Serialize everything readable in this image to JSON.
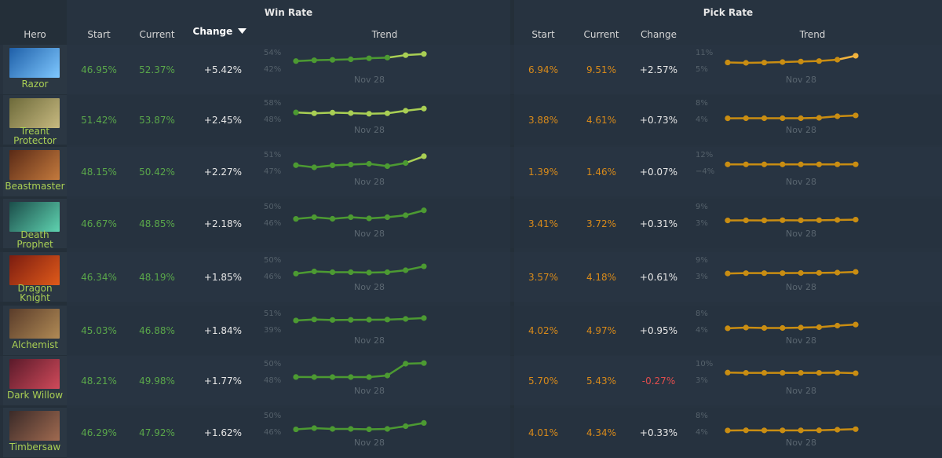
{
  "header": {
    "win_rate_group": "Win Rate",
    "pick_rate_group": "Pick Rate",
    "hero": "Hero",
    "start": "Start",
    "current": "Current",
    "change": "Change",
    "trend": "Trend",
    "sort_indicator": "triangle-down-icon"
  },
  "colors": {
    "win_line": "#4c9a32",
    "win_highlight": "#a9cf54",
    "pick_line": "#c98d12",
    "pick_highlight": "#f2b33d",
    "negative": "#e04d4d"
  },
  "rows": [
    {
      "hero": "Razor",
      "name_lines": [
        "Razor"
      ],
      "wr_start": "46.95%",
      "wr_current": "52.37%",
      "wr_change": "+5.42%",
      "wr_trend": {
        "max": "54%",
        "min": "42%",
        "date": "Nov 28",
        "values": [
          46.95,
          47.6,
          47.9,
          48.3,
          49.1,
          49.6,
          51.5,
          52.37
        ],
        "highlight_from": 5
      },
      "pr_start": "6.94%",
      "pr_current": "9.51%",
      "pr_change": "+2.57%",
      "pr_trend": {
        "max": "11%",
        "min": "5%",
        "date": "Nov 28",
        "values": [
          6.94,
          6.8,
          6.9,
          7.1,
          7.3,
          7.5,
          8.0,
          9.51
        ],
        "highlight_from": 6
      }
    },
    {
      "hero": "Treant Protector",
      "name_lines": [
        "Treant",
        "Protector"
      ],
      "wr_start": "51.42%",
      "wr_current": "53.87%",
      "wr_change": "+2.45%",
      "wr_trend": {
        "max": "58%",
        "min": "48%",
        "date": "Nov 28",
        "values": [
          51.42,
          50.9,
          51.3,
          51.0,
          50.6,
          50.9,
          52.5,
          53.87
        ],
        "highlight_from": 0
      },
      "pr_start": "3.88%",
      "pr_current": "4.61%",
      "pr_change": "+0.73%",
      "pr_trend": {
        "max": "8%",
        "min": "4%",
        "date": "Nov 28",
        "values": [
          3.88,
          3.9,
          3.9,
          3.9,
          3.9,
          4.0,
          4.4,
          4.61
        ],
        "highlight_from": 8
      }
    },
    {
      "hero": "Beastmaster",
      "name_lines": [
        "Beastmaster"
      ],
      "wr_start": "48.15%",
      "wr_current": "50.42%",
      "wr_change": "+2.27%",
      "wr_trend": {
        "max": "51%",
        "min": "47%",
        "date": "Nov 28",
        "values": [
          48.15,
          47.6,
          48.1,
          48.3,
          48.5,
          47.9,
          48.7,
          50.42
        ],
        "highlight_from": 6
      },
      "pr_start": "1.39%",
      "pr_current": "1.46%",
      "pr_change": "+0.07%",
      "pr_trend": {
        "max": "12%",
        "min": "−4%",
        "date": "Nov 28",
        "values": [
          1.39,
          1.4,
          1.4,
          1.4,
          1.4,
          1.42,
          1.44,
          1.46
        ],
        "highlight_from": 8
      }
    },
    {
      "hero": "Death Prophet",
      "name_lines": [
        "Death",
        "Prophet"
      ],
      "wr_start": "46.67%",
      "wr_current": "48.85%",
      "wr_change": "+2.18%",
      "wr_trend": {
        "max": "50%",
        "min": "46%",
        "date": "Nov 28",
        "values": [
          46.67,
          47.1,
          46.7,
          47.1,
          46.8,
          47.1,
          47.6,
          48.85
        ],
        "highlight_from": 8
      },
      "pr_start": "3.41%",
      "pr_current": "3.72%",
      "pr_change": "+0.31%",
      "pr_trend": {
        "max": "9%",
        "min": "3%",
        "date": "Nov 28",
        "values": [
          3.41,
          3.45,
          3.42,
          3.5,
          3.46,
          3.5,
          3.6,
          3.72
        ],
        "highlight_from": 8
      }
    },
    {
      "hero": "Dragon Knight",
      "name_lines": [
        "Dragon",
        "Knight"
      ],
      "wr_start": "46.34%",
      "wr_current": "48.19%",
      "wr_change": "+1.85%",
      "wr_trend": {
        "max": "50%",
        "min": "46%",
        "date": "Nov 28",
        "values": [
          46.34,
          46.9,
          46.7,
          46.7,
          46.6,
          46.7,
          47.2,
          48.19
        ],
        "highlight_from": 8
      },
      "pr_start": "3.57%",
      "pr_current": "4.18%",
      "pr_change": "+0.61%",
      "pr_trend": {
        "max": "9%",
        "min": "3%",
        "date": "Nov 28",
        "values": [
          3.57,
          3.7,
          3.7,
          3.7,
          3.75,
          3.8,
          3.9,
          4.18
        ],
        "highlight_from": 8
      }
    },
    {
      "hero": "Alchemist",
      "name_lines": [
        "Alchemist"
      ],
      "wr_start": "45.03%",
      "wr_current": "46.88%",
      "wr_change": "+1.84%",
      "wr_trend": {
        "max": "51%",
        "min": "39%",
        "date": "Nov 28",
        "values": [
          45.03,
          45.8,
          45.4,
          45.5,
          45.6,
          45.7,
          46.2,
          46.88
        ],
        "highlight_from": 8
      },
      "pr_start": "4.02%",
      "pr_current": "4.97%",
      "pr_change": "+0.95%",
      "pr_trend": {
        "max": "8%",
        "min": "4%",
        "date": "Nov 28",
        "values": [
          4.02,
          4.2,
          4.1,
          4.1,
          4.2,
          4.3,
          4.7,
          4.97
        ],
        "highlight_from": 8
      }
    },
    {
      "hero": "Dark Willow",
      "name_lines": [
        "Dark Willow"
      ],
      "wr_start": "48.21%",
      "wr_current": "49.98%",
      "wr_change": "+1.77%",
      "wr_trend": {
        "max": "50%",
        "min": "48%",
        "date": "Nov 28",
        "values": [
          48.21,
          48.2,
          48.2,
          48.2,
          48.2,
          48.4,
          49.9,
          49.98
        ],
        "highlight_from": 8
      },
      "pr_start": "5.70%",
      "pr_current": "5.43%",
      "pr_change": "-0.27%",
      "pr_trend": {
        "max": "10%",
        "min": "3%",
        "date": "Nov 28",
        "values": [
          5.7,
          5.6,
          5.6,
          5.6,
          5.6,
          5.6,
          5.65,
          5.43
        ],
        "highlight_from": 8
      }
    },
    {
      "hero": "Timbersaw",
      "name_lines": [
        "Timbersaw"
      ],
      "wr_start": "46.29%",
      "wr_current": "47.92%",
      "wr_change": "+1.62%",
      "wr_trend": {
        "max": "50%",
        "min": "46%",
        "date": "Nov 28",
        "values": [
          46.29,
          46.6,
          46.4,
          46.4,
          46.3,
          46.4,
          47.1,
          47.92
        ],
        "highlight_from": 8
      },
      "pr_start": "4.01%",
      "pr_current": "4.34%",
      "pr_change": "+0.33%",
      "pr_trend": {
        "max": "8%",
        "min": "4%",
        "date": "Nov 28",
        "values": [
          4.01,
          4.05,
          4.03,
          4.03,
          4.03,
          4.05,
          4.2,
          4.34
        ],
        "highlight_from": 8
      }
    }
  ]
}
